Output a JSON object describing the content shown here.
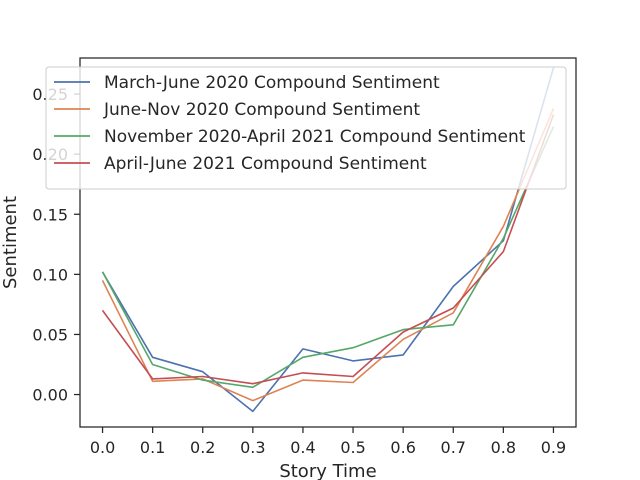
{
  "chart_data": {
    "type": "line",
    "title": "",
    "xlabel": "Story Time",
    "ylabel": "Sentiment",
    "x": [
      0.0,
      0.1,
      0.2,
      0.3,
      0.4,
      0.5,
      0.6,
      0.7,
      0.8,
      0.9
    ],
    "xlim": [
      -0.045,
      0.945
    ],
    "ylim": [
      -0.027,
      0.28
    ],
    "x_ticks": [
      "0.0",
      "0.1",
      "0.2",
      "0.3",
      "0.4",
      "0.5",
      "0.6",
      "0.7",
      "0.8",
      "0.9"
    ],
    "y_ticks": [
      "0.00",
      "0.05",
      "0.10",
      "0.15",
      "0.20",
      "0.25"
    ],
    "grid": false,
    "legend_position": "top",
    "series": [
      {
        "name": "March-June 2020 Compound Sentiment",
        "color": "#4c72b0",
        "values": [
          0.102,
          0.031,
          0.019,
          -0.014,
          0.038,
          0.028,
          0.033,
          0.09,
          0.128,
          0.272
        ]
      },
      {
        "name": "June-Nov 2020 Compound Sentiment",
        "color": "#dd8452",
        "values": [
          0.095,
          0.011,
          0.013,
          -0.005,
          0.012,
          0.01,
          0.046,
          0.068,
          0.14,
          0.238
        ]
      },
      {
        "name": "November 2020-April 2021 Compound Sentiment",
        "color": "#55a868",
        "values": [
          0.102,
          0.025,
          0.012,
          0.006,
          0.031,
          0.039,
          0.054,
          0.058,
          0.13,
          0.223
        ]
      },
      {
        "name": "April-June 2021 Compound Sentiment",
        "color": "#c44e52",
        "values": [
          0.07,
          0.013,
          0.015,
          0.009,
          0.018,
          0.015,
          0.052,
          0.072,
          0.119,
          0.233
        ]
      }
    ]
  }
}
